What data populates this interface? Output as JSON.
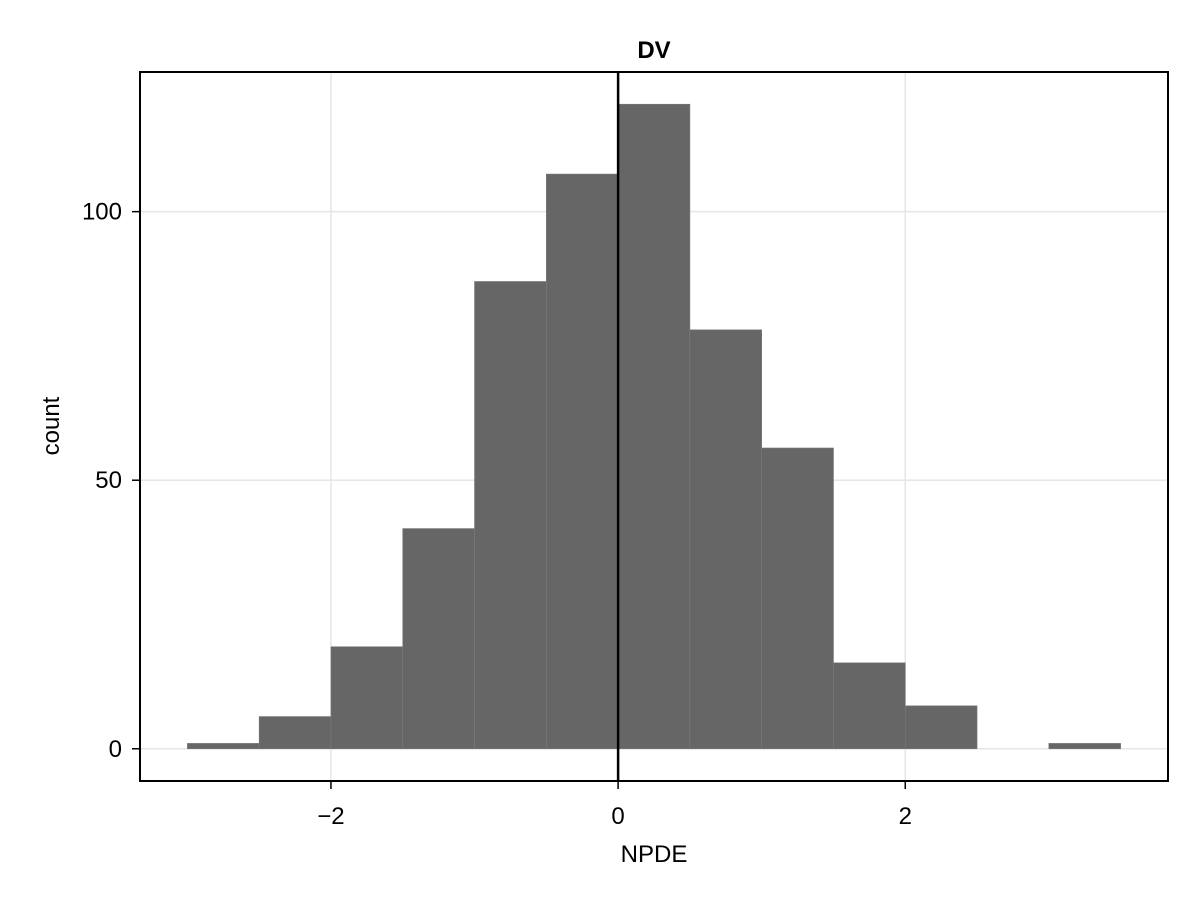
{
  "chart_data": {
    "type": "bar",
    "title": "DV",
    "xlabel": "NPDE",
    "ylabel": "count",
    "bin_edges": [
      -3.0,
      -2.5,
      -2.0,
      -1.5,
      -1.0,
      -0.5,
      0.0,
      0.5,
      1.0,
      1.5,
      2.0,
      2.5,
      3.0,
      3.5
    ],
    "counts": [
      1,
      6,
      19,
      41,
      87,
      107,
      120,
      78,
      56,
      16,
      8,
      0,
      1
    ],
    "xlim": [
      -3.33,
      3.83
    ],
    "ylim": [
      -6,
      126
    ],
    "xticks": [
      {
        "value": -2,
        "label": "−2"
      },
      {
        "value": 0,
        "label": "0"
      },
      {
        "value": 2,
        "label": "2"
      }
    ],
    "yticks": [
      {
        "value": 0,
        "label": "0"
      },
      {
        "value": 50,
        "label": "50"
      },
      {
        "value": 100,
        "label": "100"
      }
    ],
    "reference_line_x": 0,
    "grid": true,
    "bar_color": "#666666",
    "reference_line_color": "#000000",
    "grid_color": "#e6e6e6"
  }
}
